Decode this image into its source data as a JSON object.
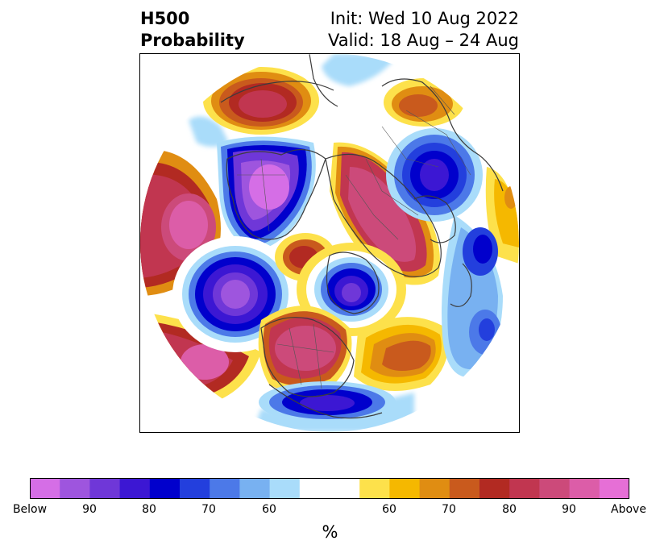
{
  "title": {
    "left_line1": "H500",
    "left_line2": "Probability",
    "right_line1": "Init: Wed 10 Aug 2022",
    "right_line2": "Valid: 18 Aug – 24 Aug"
  },
  "colorbar": {
    "unit": "%",
    "colors": [
      "#d56ee6",
      "#9e55de",
      "#6f37d8",
      "#3c17d3",
      "#0100cc",
      "#233fdd",
      "#4c79e8",
      "#78b1f1",
      "#a9dcfa",
      "#ffffff",
      "#ffffff",
      "#fde14b",
      "#f5b800",
      "#e08d12",
      "#c95a1d",
      "#b22a22",
      "#c13650",
      "#cc4a7a",
      "#dc5da8",
      "#e66fd6"
    ],
    "tick_labels": [
      "Below",
      "90",
      "80",
      "70",
      "60",
      "60",
      "70",
      "80",
      "90",
      "Above"
    ]
  }
}
